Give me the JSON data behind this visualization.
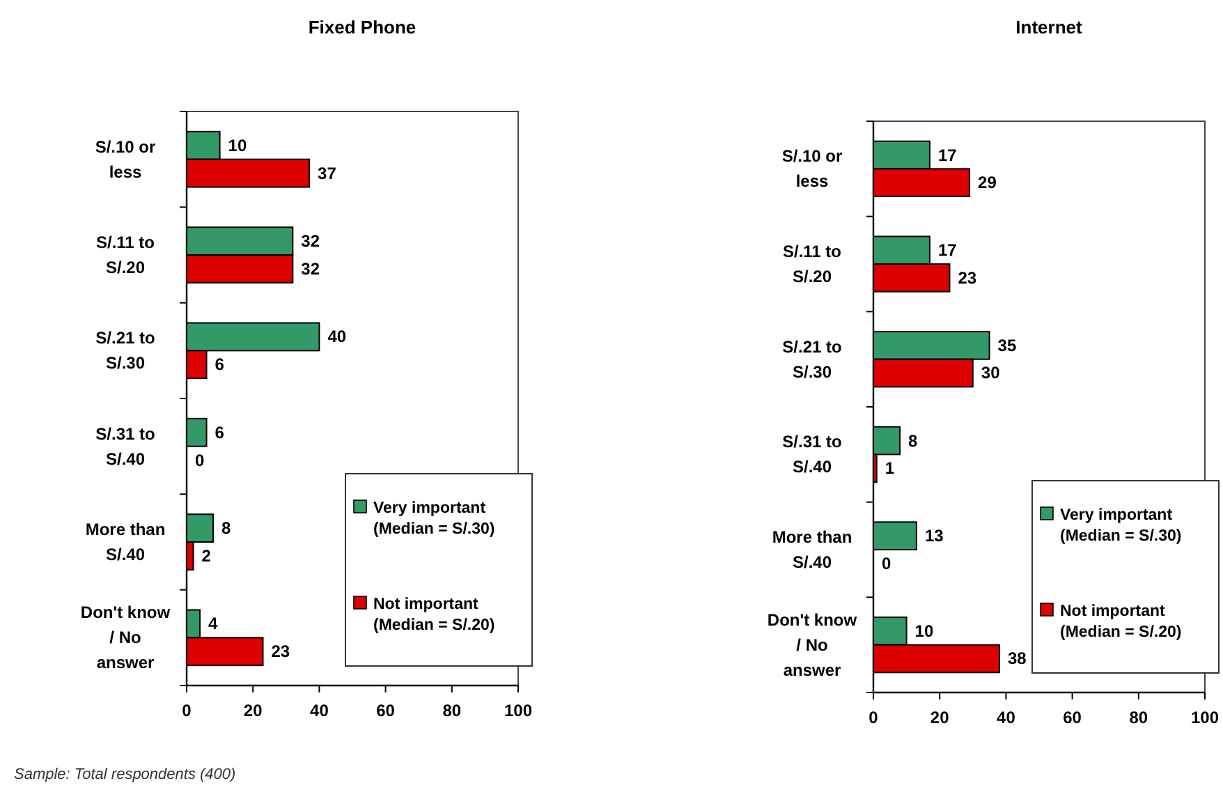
{
  "chart_data": [
    {
      "type": "bar",
      "orientation": "horizontal",
      "title": "Fixed Phone",
      "categories": [
        "S/.10 or less",
        "S/.11 to S/.20",
        "S/.21 to S/.30",
        "S/.31 to S/.40",
        "More than S/.40",
        "Don't know / No answer"
      ],
      "series": [
        {
          "name": "Very important (Median = S/.30)",
          "color": "#339966",
          "values": [
            10,
            32,
            40,
            6,
            8,
            4
          ]
        },
        {
          "name": "Not important (Median = S/.20)",
          "color": "#dd0000",
          "values": [
            37,
            32,
            6,
            0,
            2,
            23
          ]
        }
      ],
      "xlim": [
        0,
        100
      ],
      "xticks": [
        0,
        20,
        40,
        60,
        80,
        100
      ],
      "data_labels": true,
      "legend": "bottom right",
      "annotations": [
        "Sample: Total respondents (400)"
      ]
    },
    {
      "type": "bar",
      "orientation": "horizontal",
      "title": "Internet",
      "categories": [
        "S/.10 or less",
        "S/.11 to S/.20",
        "S/.21 to S/.30",
        "S/.31 to S/.40",
        "More than S/.40",
        "Don't know / No answer"
      ],
      "series": [
        {
          "name": "Very important (Median = S/.30)",
          "color": "#339966",
          "values": [
            17,
            17,
            35,
            8,
            13,
            10
          ]
        },
        {
          "name": "Not important (Median = S/.20)",
          "color": "#dd0000",
          "values": [
            29,
            23,
            30,
            1,
            0,
            38
          ]
        }
      ],
      "xlim": [
        0,
        100
      ],
      "xticks": [
        0,
        20,
        40,
        60,
        80,
        100
      ],
      "data_labels": true,
      "legend": "bottom right"
    }
  ]
}
